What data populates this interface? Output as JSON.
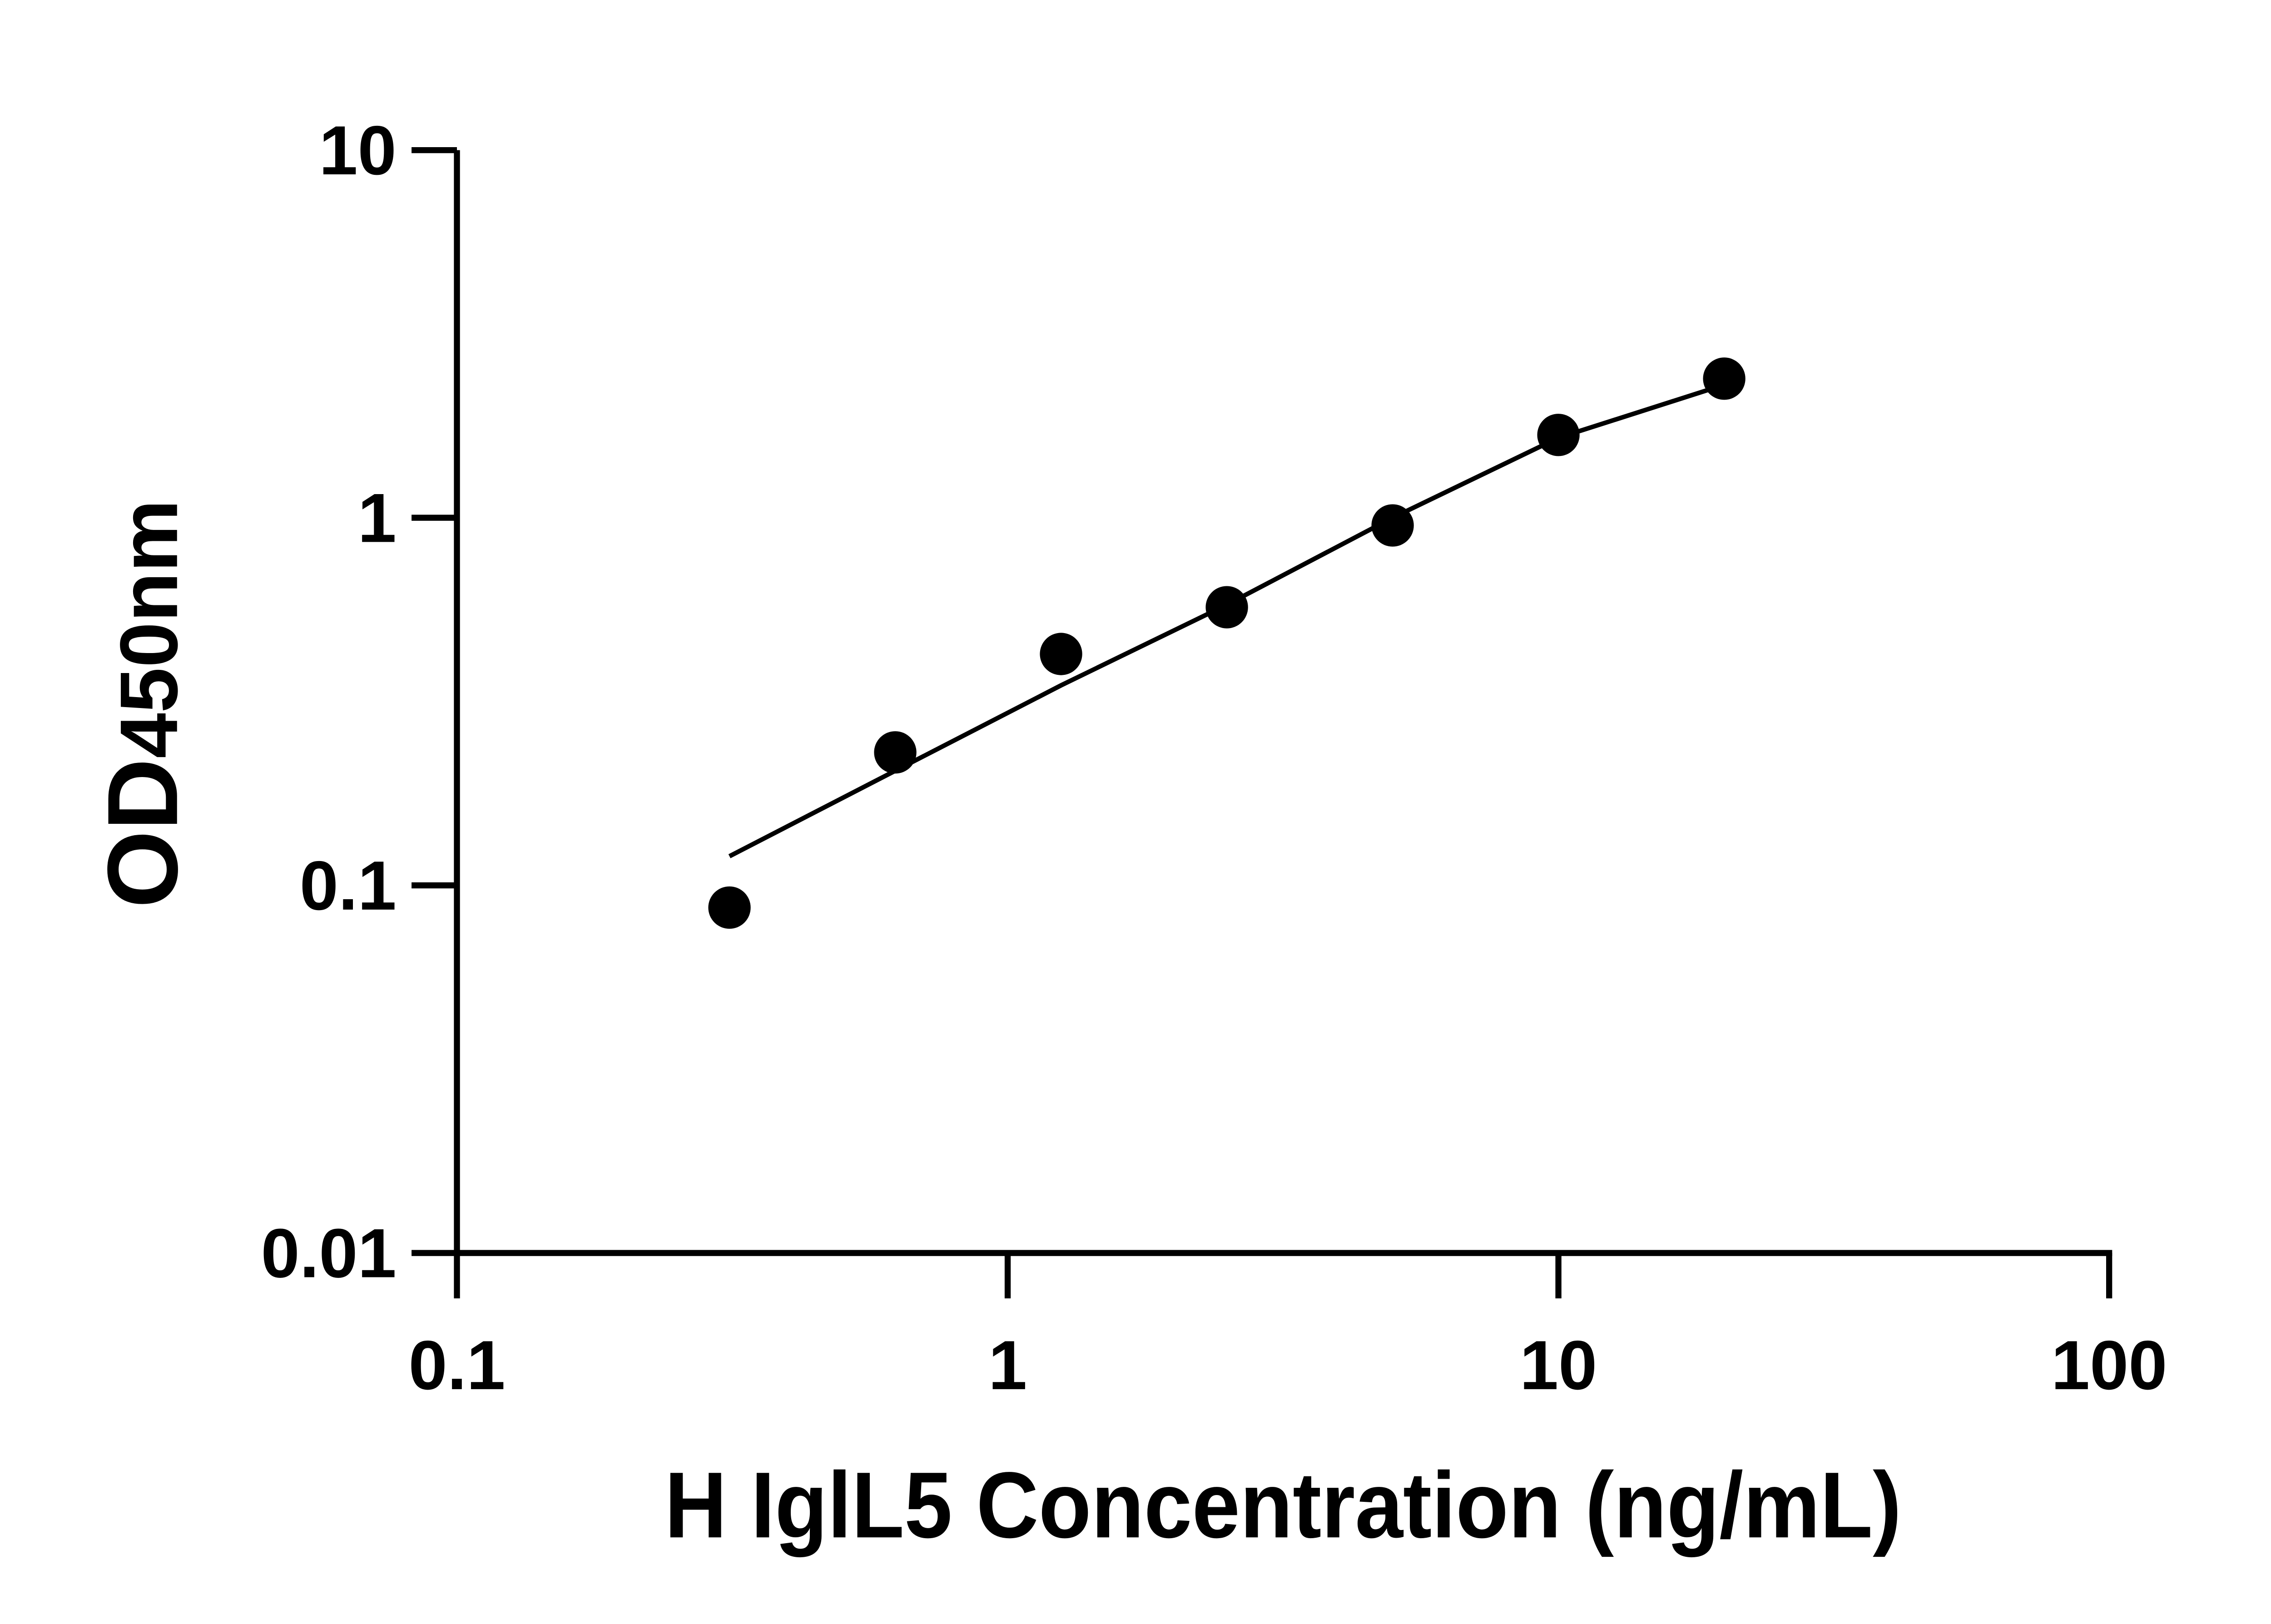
{
  "chart_data": {
    "type": "scatter",
    "title": "",
    "xlabel": "H IglL5 Concentration (ng/mL)",
    "ylabel_main": "OD",
    "ylabel_sub": "450nm",
    "x_scale": "log",
    "y_scale": "log",
    "xlim": [
      0.1,
      100
    ],
    "ylim": [
      0.01,
      10
    ],
    "x_ticks": [
      "0.1",
      "1",
      "10",
      "100"
    ],
    "y_ticks": [
      "0.01",
      "0.1",
      "1",
      "10"
    ],
    "grid": false,
    "legend": "none",
    "points": {
      "x": [
        0.3125,
        0.625,
        1.25,
        2.5,
        5,
        10,
        20
      ],
      "y": [
        0.087,
        0.23,
        0.426,
        0.571,
        0.953,
        1.68,
        2.39
      ]
    },
    "fit_curve": {
      "x": [
        0.3125,
        0.625,
        1.25,
        2.5,
        5,
        10,
        20
      ],
      "y": [
        0.12,
        0.205,
        0.35,
        0.58,
        1.0,
        1.65,
        2.3
      ]
    },
    "colors": {
      "points": "#000000",
      "line": "#000000",
      "axes": "#000000"
    }
  }
}
